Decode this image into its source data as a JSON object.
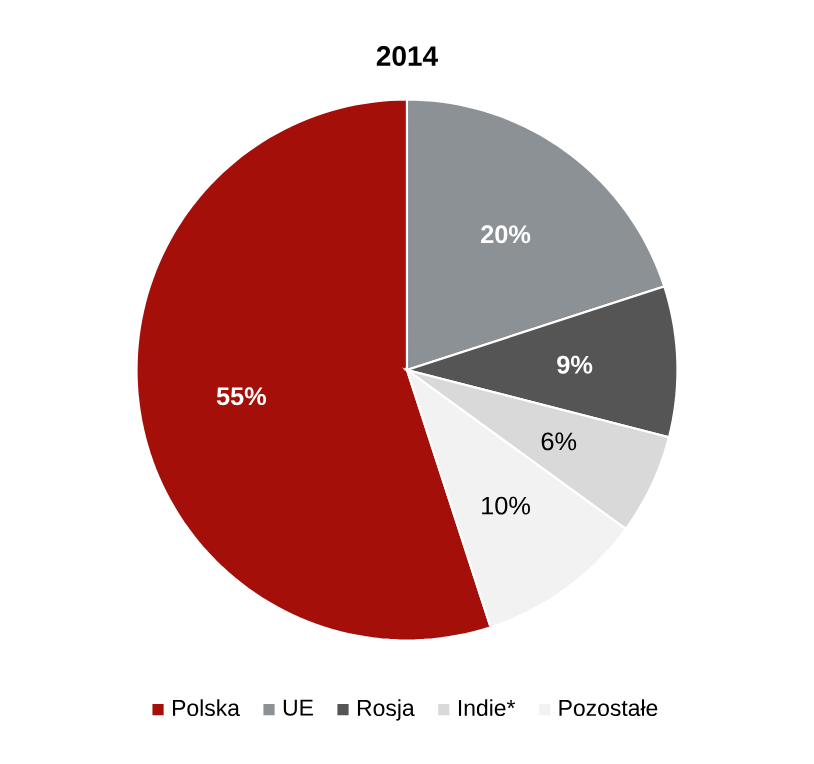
{
  "chart_data": {
    "type": "pie",
    "title": "2014",
    "categories": [
      "Polska",
      "UE",
      "Rosja",
      "Indie*",
      "Pozostałe"
    ],
    "values": [
      55,
      20,
      9,
      6,
      10
    ],
    "colors": [
      "#a50f0a",
      "#8c9196",
      "#555555",
      "#d9d9d9",
      "#f2f2f2"
    ],
    "value_labels": [
      "55%",
      "20%",
      "9%",
      "6%",
      "10%"
    ],
    "legend": "bottom"
  }
}
